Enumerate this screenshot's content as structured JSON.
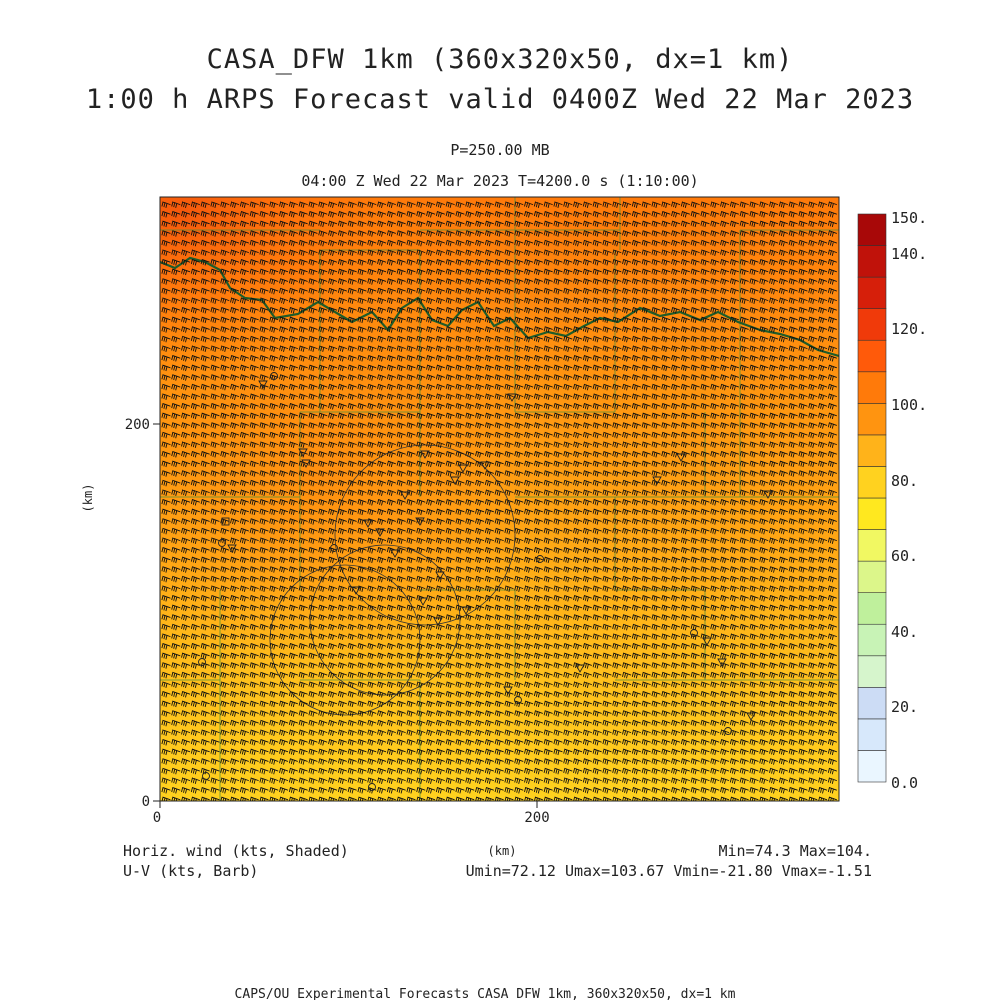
{
  "title": {
    "line1": "CASA_DFW 1km (360x320x50, dx=1 km)",
    "line2": "1:00 h ARPS Forecast valid 0400Z Wed 22 Mar 2023"
  },
  "level_label": "P=250.00 MB",
  "time_label": "04:00 Z Wed 22 Mar 2023   T=4200.0 s (1:10:00)",
  "axes": {
    "x_ticks": [
      {
        "value": 0,
        "label": "0"
      },
      {
        "value": 200,
        "label": "200"
      }
    ],
    "y_ticks": [
      {
        "value": 0,
        "label": "0"
      },
      {
        "value": 200,
        "label": "200"
      }
    ],
    "x_unit": "(km)",
    "y_unit": "(km)",
    "x_range": [
      0,
      360
    ],
    "y_range": [
      0,
      320
    ]
  },
  "colorbar": {
    "labels": [
      "0.0",
      "20.",
      "40.",
      "60.",
      "80.",
      "100.",
      "120.",
      "140.",
      "150."
    ],
    "colors": [
      "#eaf6ff",
      "#d7e8fb",
      "#ccdcf5",
      "#d6f5cc",
      "#c8f3b6",
      "#bff09c",
      "#dcf68a",
      "#f1f862",
      "#ffe81f",
      "#ffd21f",
      "#ffb31a",
      "#ff9410",
      "#ff7a0a",
      "#ff5a0a",
      "#f03a0a",
      "#d61f0a",
      "#c0120a",
      "#a80808"
    ]
  },
  "footer": {
    "field_label": "Horiz. wind (kts, Shaded)",
    "vector_label": "U-V (kts, Barb)",
    "minmax": "Min=74.3 Max=104.",
    "uv_stats": "Umin=72.12 Umax=103.67 Vmin=-21.80 Vmax=-1.51",
    "credit": "CAPS/OU Experimental Forecasts  CASA DFW 1km, 360x320x50, dx=1 km"
  },
  "colors": {
    "boundary": "#1e5c2a",
    "county_lines": "#5a8f3a",
    "barb": "#111111"
  }
}
